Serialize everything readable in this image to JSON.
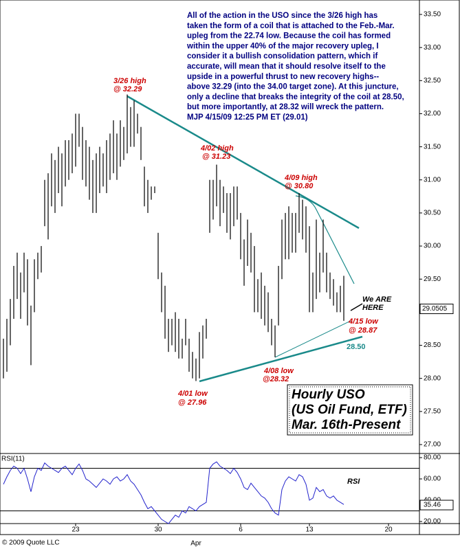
{
  "chart_data": {
    "type": "ohlc",
    "ylim": [
      27,
      33.5
    ],
    "yticks": [
      {
        "value": 33.5,
        "label": "33.50"
      },
      {
        "value": 33,
        "label": "33.00"
      },
      {
        "value": 32.5,
        "label": "32.50"
      },
      {
        "value": 32,
        "label": "32.00"
      },
      {
        "value": 31.5,
        "label": "31.50"
      },
      {
        "value": 31,
        "label": "31.00"
      },
      {
        "value": 30.5,
        "label": "30.50"
      },
      {
        "value": 30,
        "label": "30.00"
      },
      {
        "value": 29.5,
        "label": "29.50"
      },
      {
        "value": 29,
        "label": "29.00"
      },
      {
        "value": 28.5,
        "label": "28.50"
      },
      {
        "value": 28,
        "label": "28.00"
      },
      {
        "value": 27.5,
        "label": "27.50"
      },
      {
        "value": 27,
        "label": "27.00"
      }
    ],
    "xticks": [
      {
        "value": 21,
        "label": "23"
      },
      {
        "value": 45,
        "label": "30"
      },
      {
        "value": 69,
        "label": "6"
      },
      {
        "value": 89,
        "label": "13"
      },
      {
        "value": 112,
        "label": "20"
      }
    ],
    "month_label": {
      "value": 56,
      "label": "Apr"
    },
    "last_price": 29.0505,
    "color": "#111111",
    "high": [
      28.6,
      28.9,
      29.2,
      29.7,
      29.9,
      29.6,
      29.9,
      29.8,
      29.1,
      29.8,
      29.9,
      30.0,
      31.0,
      31.1,
      31.4,
      31.3,
      31.5,
      31.4,
      31.6,
      31.6,
      31.7,
      32.0,
      32.0,
      31.8,
      31.6,
      31.5,
      31.3,
      31.4,
      31.5,
      31.4,
      31.6,
      31.7,
      31.9,
      31.7,
      31.9,
      31.8,
      32.29,
      32.1,
      32.2,
      32.0,
      31.8,
      31.2,
      31.0,
      30.9,
      30.9,
      30.2,
      29.6,
      29.4,
      28.9,
      28.9,
      29.0,
      28.9,
      28.6,
      28.9,
      28.6,
      28.4,
      28.3,
      28.7,
      28.8,
      28.9,
      31.0,
      31.0,
      31.23,
      31.0,
      30.9,
      30.8,
      30.8,
      30.9,
      30.9,
      30.5,
      30.1,
      30.4,
      30.2,
      30.0,
      29.5,
      29.6,
      29.4,
      29.3,
      28.9,
      28.8,
      29.7,
      30.4,
      30.5,
      30.6,
      30.5,
      30.5,
      30.8,
      30.7,
      30.6,
      30.3,
      29.6,
      30.4,
      29.9,
      30.4,
      29.9,
      29.6,
      29.5,
      29.3,
      29.4,
      29.55
    ],
    "low": [
      28.0,
      28.1,
      28.5,
      28.9,
      29.2,
      28.9,
      29.3,
      28.8,
      28.2,
      29.0,
      29.5,
      29.6,
      30.3,
      30.1,
      30.6,
      30.5,
      30.8,
      30.6,
      30.9,
      31.0,
      31.1,
      31.2,
      31.5,
      31.0,
      30.9,
      30.7,
      30.5,
      30.5,
      30.8,
      30.9,
      30.8,
      31.0,
      31.1,
      31.0,
      31.2,
      31.3,
      31.4,
      31.5,
      31.5,
      31.7,
      31.3,
      30.6,
      30.5,
      30.7,
      30.8,
      29.5,
      29.0,
      28.6,
      28.4,
      28.5,
      28.4,
      28.3,
      28.3,
      28.5,
      28.1,
      28.0,
      27.96,
      28.0,
      28.3,
      28.6,
      30.2,
      30.4,
      30.6,
      30.3,
      30.5,
      30.2,
      30.1,
      30.3,
      30.4,
      29.8,
      29.4,
      29.7,
      29.6,
      29.0,
      29.0,
      28.9,
      28.8,
      28.7,
      28.5,
      28.32,
      28.8,
      29.5,
      29.8,
      29.8,
      29.9,
      29.9,
      30.2,
      30.1,
      29.9,
      29.0,
      29.0,
      29.2,
      29.3,
      29.6,
      29.3,
      29.2,
      29.1,
      29.0,
      29.0,
      28.87
    ],
    "rsi": {
      "label": "RSI(11)",
      "name": "RSI",
      "color": "#2222cc",
      "ylim": [
        20,
        80
      ],
      "yticks": [
        {
          "value": 80,
          "label": "80.00"
        },
        {
          "value": 60,
          "label": "60.00"
        },
        {
          "value": 40,
          "label": "40.00"
        },
        {
          "value": 20,
          "label": "20.00"
        }
      ],
      "levels": [
        70,
        30
      ],
      "last": 35.46,
      "values": [
        55,
        62,
        68,
        72,
        70,
        65,
        70,
        60,
        48,
        62,
        70,
        68,
        75,
        72,
        70,
        68,
        66,
        70,
        72,
        68,
        64,
        70,
        74,
        68,
        60,
        58,
        55,
        52,
        56,
        60,
        58,
        55,
        60,
        62,
        58,
        60,
        64,
        58,
        55,
        50,
        45,
        38,
        32,
        34,
        30,
        26,
        22,
        20,
        18,
        22,
        26,
        24,
        30,
        28,
        34,
        32,
        30,
        34,
        36,
        38,
        70,
        74,
        76,
        72,
        70,
        68,
        65,
        70,
        66,
        60,
        52,
        50,
        56,
        52,
        48,
        44,
        42,
        38,
        32,
        28,
        26,
        50,
        58,
        62,
        60,
        58,
        64,
        62,
        55,
        40,
        42,
        52,
        48,
        50,
        44,
        42,
        44,
        40,
        38,
        36
      ]
    },
    "commentary": [
      "All of the action in the USO since the 3/26 high has",
      "taken the form of a coil that is attached to the Feb.-Mar.",
      "upleg from the 22.74 low. Because the coil has formed",
      "within the upper 40% of the major recovery upleg, I",
      "consider it a bullish consolidation pattern, which if",
      "accurate, will mean that it should resolve itself to the",
      "upside in a powerful thrust to new recovery highs--",
      "above 32.29 (into the 34.00 target zone). At this juncture,",
      "only a decline that breaks the integrity of the coil at 28.50,",
      "but more importantly, at 28.32 will wreck the pattern.",
      "MJP  4/15/09  12:25 PM ET  (29.01)"
    ],
    "annotations": [
      [
        "3/26 high",
        "@ 32.29"
      ],
      [
        "4/02 high",
        "@ 31.23"
      ],
      [
        "4/09 high",
        "@ 30.80"
      ],
      [
        "4/01 low",
        "@ 27.96"
      ],
      [
        "4/08 low",
        "@28.32"
      ],
      [
        "4/15 low",
        "@ 28.87"
      ],
      [
        "We ARE",
        "HERE"
      ]
    ],
    "support_label": "28.50",
    "title_box": [
      "Hourly USO",
      "(US Oil Fund, ETF)",
      "Mar. 16th-Present"
    ],
    "copyright": "© 2009 Quote LLC"
  }
}
